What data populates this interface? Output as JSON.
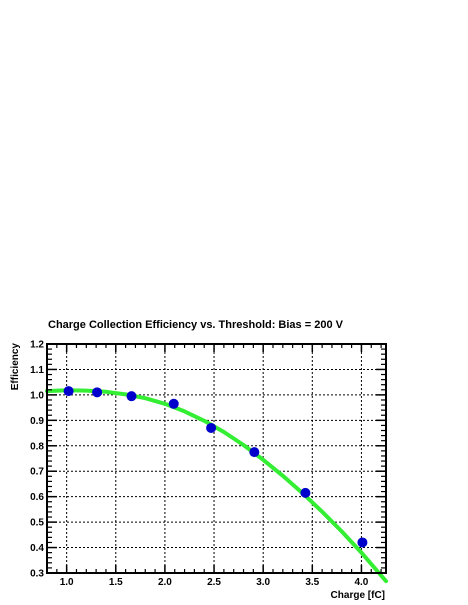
{
  "chart_data": {
    "type": "scatter",
    "title": "Charge Collection Efficiency vs. Threshold: Bias = 200 V",
    "xlabel": "Charge [fC]",
    "ylabel": "Efficiency",
    "xlim": [
      0.8,
      4.25
    ],
    "ylim": [
      0.3,
      1.2
    ],
    "grid": true,
    "x_ticks": [
      1.0,
      1.5,
      2.0,
      2.5,
      3.0,
      3.5,
      4.0
    ],
    "x_tick_labels": [
      "1.0",
      "1.5",
      "2.0",
      "2.5",
      "3.0",
      "3.5",
      "4.0"
    ],
    "y_ticks": [
      0.3,
      0.4,
      0.5,
      0.6,
      0.7,
      0.8,
      0.9,
      1.0,
      1.1,
      1.2
    ],
    "y_tick_labels": [
      "0.3",
      "0.4",
      "0.5",
      "0.6",
      "0.7",
      "0.8",
      "0.9",
      "1.0",
      "1.1",
      "1.2"
    ],
    "series": [
      {
        "type": "scatter",
        "color": "#0000cc",
        "x": [
          1.02,
          1.31,
          1.66,
          2.09,
          2.47,
          2.91,
          3.43,
          4.01
        ],
        "y": [
          1.015,
          1.01,
          0.995,
          0.965,
          0.87,
          0.775,
          0.615,
          0.42
        ]
      },
      {
        "type": "line",
        "color": "#33ee33",
        "x": [
          0.8,
          1.0,
          1.2,
          1.4,
          1.6,
          1.8,
          2.0,
          2.2,
          2.4,
          2.6,
          2.8,
          3.0,
          3.2,
          3.4,
          3.6,
          3.8,
          4.0,
          4.2,
          4.25
        ],
        "y": [
          1.015,
          1.018,
          1.017,
          1.012,
          1.002,
          0.987,
          0.965,
          0.935,
          0.898,
          0.854,
          0.803,
          0.745,
          0.682,
          0.614,
          0.541,
          0.463,
          0.38,
          0.29,
          0.268
        ]
      }
    ]
  }
}
